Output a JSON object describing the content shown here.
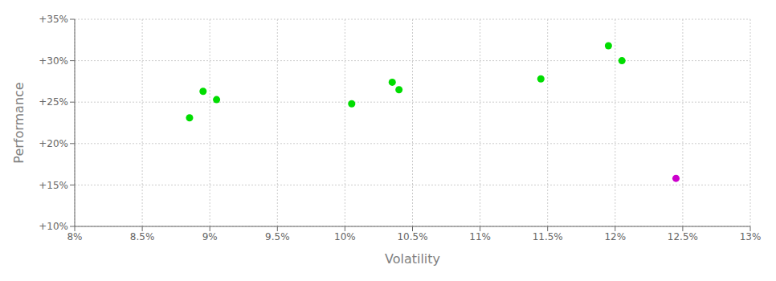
{
  "chart_data": {
    "type": "scatter",
    "xlabel": "Volatility",
    "ylabel": "Performance",
    "xlim": [
      0.08,
      0.13
    ],
    "ylim": [
      0.1,
      0.35
    ],
    "xticks": [
      {
        "value": 0.08,
        "label": "8%"
      },
      {
        "value": 0.085,
        "label": "8.5%"
      },
      {
        "value": 0.09,
        "label": "9%"
      },
      {
        "value": 0.095,
        "label": "9.5%"
      },
      {
        "value": 0.1,
        "label": "10%"
      },
      {
        "value": 0.105,
        "label": "10.5%"
      },
      {
        "value": 0.11,
        "label": "11%"
      },
      {
        "value": 0.115,
        "label": "11.5%"
      },
      {
        "value": 0.12,
        "label": "12%"
      },
      {
        "value": 0.125,
        "label": "12.5%"
      },
      {
        "value": 0.13,
        "label": "13%"
      }
    ],
    "yticks": [
      {
        "value": 0.1,
        "label": "+10%"
      },
      {
        "value": 0.15,
        "label": "+15%"
      },
      {
        "value": 0.2,
        "label": "+20%"
      },
      {
        "value": 0.25,
        "label": "+25%"
      },
      {
        "value": 0.3,
        "label": "+30%"
      },
      {
        "value": 0.35,
        "label": "+35%"
      }
    ],
    "grid": true,
    "series": [
      {
        "color": "#00dd00",
        "x": [
          0.0895,
          0.0905,
          0.0885,
          0.1005,
          0.1035,
          0.104,
          0.1145,
          0.1195,
          0.1205
        ],
        "values": [
          0.263,
          0.253,
          0.231,
          0.248,
          0.274,
          0.265,
          0.278,
          0.318,
          0.3
        ]
      },
      {
        "color": "#cc00cc",
        "x": [
          0.1245
        ],
        "values": [
          0.158
        ]
      }
    ]
  }
}
